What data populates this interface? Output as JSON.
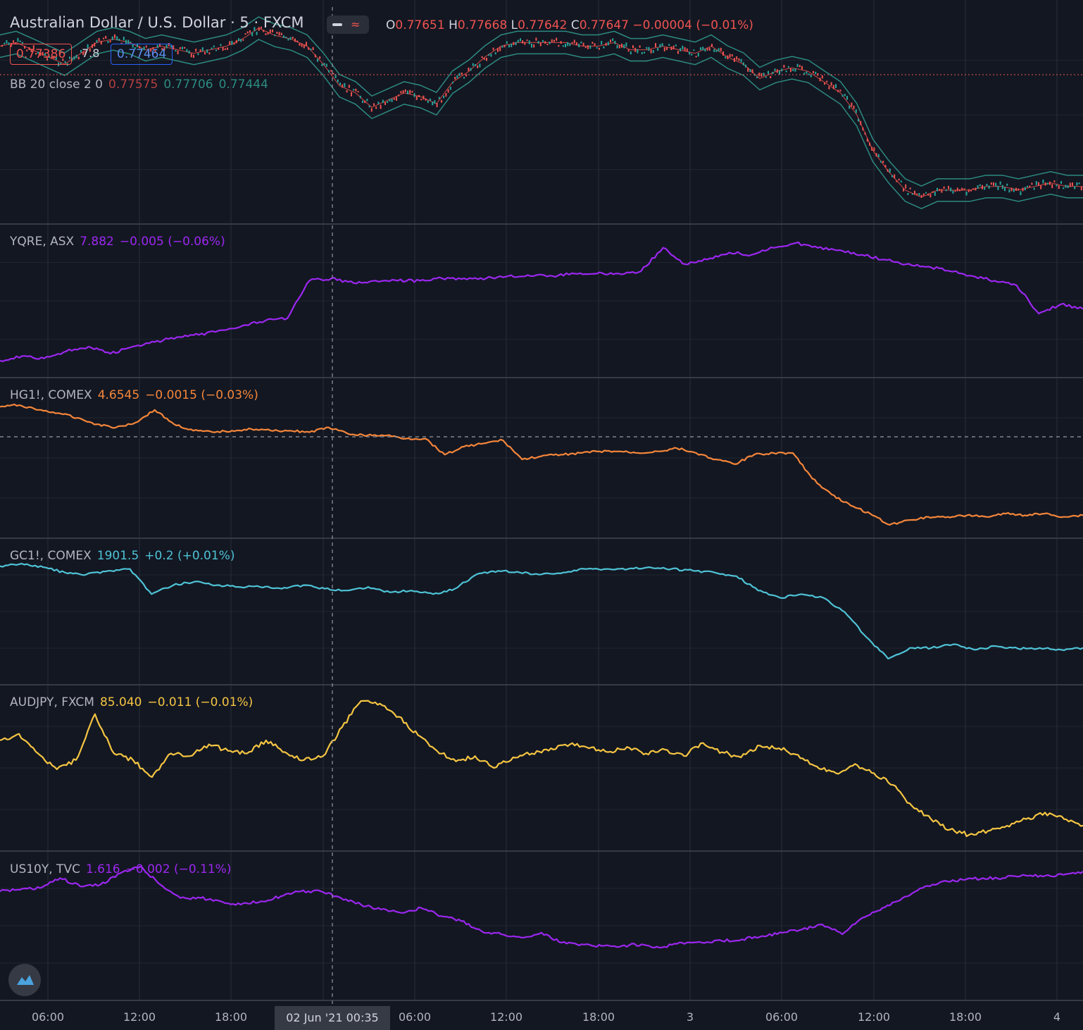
{
  "header": {
    "symbol": "Australian Dollar / U.S. Dollar · 5 · FXCM",
    "open_k": "O",
    "open": "0.77651",
    "high_k": "H",
    "high": "0.77668",
    "low_k": "L",
    "low": "0.77642",
    "close_k": "C",
    "close": "0.77647",
    "change": "−0.00004 (−0.01%)",
    "bid": "0.77386",
    "spread": "7.8",
    "ask": "0.77464",
    "bb_label": "BB 20 close 2 0",
    "bb_basis": "0.77575",
    "bb_upper": "0.77706",
    "bb_lower": "0.77444"
  },
  "colors": {
    "background": "#131722",
    "grid": "#2a2e39",
    "candle_up": "#26a69a",
    "candle_down": "#ef5350",
    "bb_band": "#2c8a80",
    "bb_basis": "#b43f3f",
    "yqre": "#9c27f0",
    "hg": "#f5863a",
    "gc": "#4ec3d6",
    "audjpy": "#f5c542",
    "us10y": "#9c27f0"
  },
  "time_axis": {
    "labels": [
      "06:00",
      "12:00",
      "18:00",
      "02 Jun '21",
      "06:00",
      "12:00",
      "18:00",
      "3",
      "06:00",
      "12:00",
      "18:00",
      "4"
    ],
    "crosshair_label": "02 Jun '21   00:35"
  },
  "chart_data": [
    {
      "type": "line",
      "title": "Australian Dollar / U.S. Dollar · 5 · FXCM",
      "series": [
        {
          "name": "AUDUSD",
          "values": [
            0.7763,
            0.7764,
            0.7762,
            0.776,
            0.7758,
            0.7761,
            0.7764,
            0.7765,
            0.7764,
            0.7762,
            0.7763,
            0.7762,
            0.7761,
            0.7762,
            0.7763,
            0.7765,
            0.7768,
            0.7766,
            0.7765,
            0.7763,
            0.7758,
            0.7752,
            0.775,
            0.7746,
            0.7748,
            0.775,
            0.7749,
            0.7747,
            0.7753,
            0.7756,
            0.776,
            0.7763,
            0.7764,
            0.7764,
            0.7764,
            0.7764,
            0.7763,
            0.7763,
            0.7764,
            0.7762,
            0.7762,
            0.7763,
            0.7762,
            0.7761,
            0.7763,
            0.776,
            0.7758,
            0.7754,
            0.7756,
            0.7757,
            0.7756,
            0.7753,
            0.775,
            0.7744,
            0.7734,
            0.7728,
            0.7723,
            0.7721,
            0.7723,
            0.7723,
            0.7723,
            0.7724,
            0.7724,
            0.7723,
            0.7724,
            0.7725,
            0.7724,
            0.7724
          ]
        }
      ]
    },
    {
      "type": "line",
      "title": "YQRE, ASX",
      "last": "7.882",
      "change": "−0.005 (−0.06%)",
      "series": [
        {
          "name": "YQRE",
          "values": [
            7.86,
            7.862,
            7.861,
            7.864,
            7.866,
            7.863,
            7.866,
            7.868,
            7.87,
            7.871,
            7.873,
            7.875,
            7.877,
            7.878,
            7.894,
            7.895,
            7.893,
            7.894,
            7.894,
            7.894,
            7.895,
            7.895,
            7.895,
            7.896,
            7.896,
            7.896,
            7.897,
            7.897,
            7.897,
            7.898,
            7.908,
            7.901,
            7.903,
            7.906,
            7.905,
            7.908,
            7.91,
            7.908,
            7.907,
            7.905,
            7.903,
            7.901,
            7.9,
            7.898,
            7.896,
            7.894,
            7.892,
            7.88,
            7.884,
            7.882
          ]
        }
      ]
    },
    {
      "type": "line",
      "title": "HG1!, COMEX",
      "last": "4.6545",
      "change": "−0.0015 (−0.03%)",
      "series": [
        {
          "name": "HG1!",
          "values": [
            4.705,
            4.706,
            4.703,
            4.701,
            4.698,
            4.694,
            4.692,
            4.695,
            4.703,
            4.694,
            4.69,
            4.689,
            4.69,
            4.691,
            4.69,
            4.69,
            4.689,
            4.692,
            4.688,
            4.687,
            4.687,
            4.685,
            4.685,
            4.675,
            4.68,
            4.682,
            4.684,
            4.672,
            4.674,
            4.675,
            4.676,
            4.677,
            4.677,
            4.676,
            4.677,
            4.679,
            4.676,
            4.672,
            4.669,
            4.675,
            4.676,
            4.676,
            4.66,
            4.65,
            4.643,
            4.638,
            4.631,
            4.634,
            4.636,
            4.636,
            4.637,
            4.636,
            4.638,
            4.637,
            4.638,
            4.636,
            4.637
          ]
        }
      ]
    },
    {
      "type": "line",
      "title": "GC1!, COMEX",
      "last": "1901.5",
      "change": "+0.2 (+0.01%)",
      "series": [
        {
          "name": "GC1!",
          "values": [
            1912.8,
            1913.5,
            1912.5,
            1911.0,
            1910.5,
            1911.5,
            1912.0,
            1905.0,
            1907.5,
            1908.5,
            1907.5,
            1907.0,
            1907.0,
            1906.5,
            1907.5,
            1906.5,
            1906.0,
            1907.0,
            1905.5,
            1906.0,
            1905.0,
            1906.5,
            1910.5,
            1911.5,
            1911.0,
            1910.5,
            1911.0,
            1912.0,
            1912.0,
            1912.0,
            1912.5,
            1912.0,
            1911.5,
            1911.0,
            1910.0,
            1906.0,
            1904.0,
            1905.0,
            1904.0,
            1900.0,
            1893.0,
            1887.0,
            1890.0,
            1890.0,
            1891.0,
            1889.5,
            1890.5,
            1889.8,
            1890.0,
            1889.5,
            1890.0
          ]
        }
      ]
    },
    {
      "type": "line",
      "title": "AUDJPY, FXCM",
      "last": "85.040",
      "change": "−0.011 (−0.01%)",
      "series": [
        {
          "name": "AUDJPY",
          "values": [
            85.07,
            85.075,
            85.06,
            85.048,
            85.055,
            85.09,
            85.06,
            85.055,
            85.042,
            85.06,
            85.058,
            85.067,
            85.062,
            85.06,
            85.07,
            85.061,
            85.055,
            85.058,
            85.08,
            85.1,
            85.098,
            85.088,
            85.074,
            85.062,
            85.054,
            85.058,
            85.049,
            85.057,
            85.06,
            85.064,
            85.067,
            85.064,
            85.061,
            85.065,
            85.06,
            85.063,
            85.058,
            85.068,
            85.061,
            85.057,
            85.066,
            85.064,
            85.059,
            85.05,
            85.045,
            85.052,
            85.045,
            85.036,
            85.02,
            85.01,
            85.002,
            84.998,
            85.001,
            85.005,
            85.01,
            85.015,
            85.01,
            85.005
          ]
        }
      ]
    },
    {
      "type": "line",
      "title": "US10Y, TVC",
      "last": "1.616",
      "change": "−0.002 (−0.11%)",
      "series": [
        {
          "name": "US10Y",
          "values": [
            1.616,
            1.617,
            1.618,
            1.624,
            1.619,
            1.62,
            1.627,
            1.631,
            1.62,
            1.612,
            1.612,
            1.61,
            1.608,
            1.61,
            1.613,
            1.616,
            1.616,
            1.612,
            1.608,
            1.605,
            1.603,
            1.606,
            1.601,
            1.598,
            1.592,
            1.59,
            1.588,
            1.591,
            1.585,
            1.584,
            1.583,
            1.583,
            1.584,
            1.582,
            1.585,
            1.585,
            1.586,
            1.587,
            1.589,
            1.591,
            1.593,
            1.596,
            1.59,
            1.6,
            1.606,
            1.612,
            1.618,
            1.622,
            1.623,
            1.624,
            1.624,
            1.626,
            1.625,
            1.626,
            1.628
          ]
        }
      ]
    }
  ]
}
